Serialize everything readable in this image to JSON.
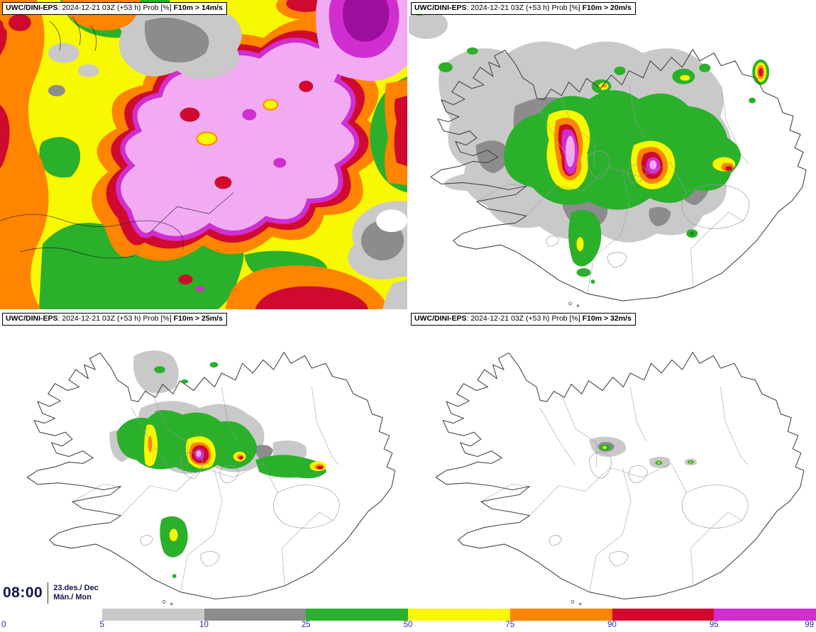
{
  "colors": {
    "p5": "#c9c9c9",
    "p10": "#8c8c8c",
    "p25": "#2bb02b",
    "p50": "#f8f800",
    "p75": "#ff8400",
    "p90": "#d00a2e",
    "p95": "#d02ed0",
    "p99": "#f2abf2",
    "deep_purple": "#9c0f9c",
    "tick_text": "#2a2fae",
    "time_text": "#14144e",
    "coast": "#444444",
    "border_gray": "#9a9a9a"
  },
  "panels": [
    {
      "model": "UWC/DINI-EPS",
      "meta": ": 2024-12-21 03Z (+53 h) Prob [%] ",
      "threshold": "F10m > 14m/s"
    },
    {
      "model": "UWC/DINI-EPS",
      "meta": ": 2024-12-21 03Z (+53 h) Prob [%] ",
      "threshold": "F10m > 20m/s"
    },
    {
      "model": "UWC/DINI-EPS",
      "meta": ": 2024-12-21 03Z (+53 h) Prob [%] ",
      "threshold": "F10m > 25m/s"
    },
    {
      "model": "UWC/DINI-EPS",
      "meta": ": 2024-12-21 03Z (+53 h) Prob [%] ",
      "threshold": "F10m > 32m/s"
    }
  ],
  "footer": {
    "time": "08:00",
    "date": "23.des./ Dec",
    "day": "Mán./ Mon"
  },
  "colorbar": {
    "tick_labels": [
      "0",
      "5",
      "10",
      "25",
      "50",
      "75",
      "90",
      "95",
      "99"
    ],
    "segment_color_keys": [
      "none",
      "p5",
      "p10",
      "p25",
      "p50",
      "p75",
      "p90",
      "p95"
    ]
  }
}
